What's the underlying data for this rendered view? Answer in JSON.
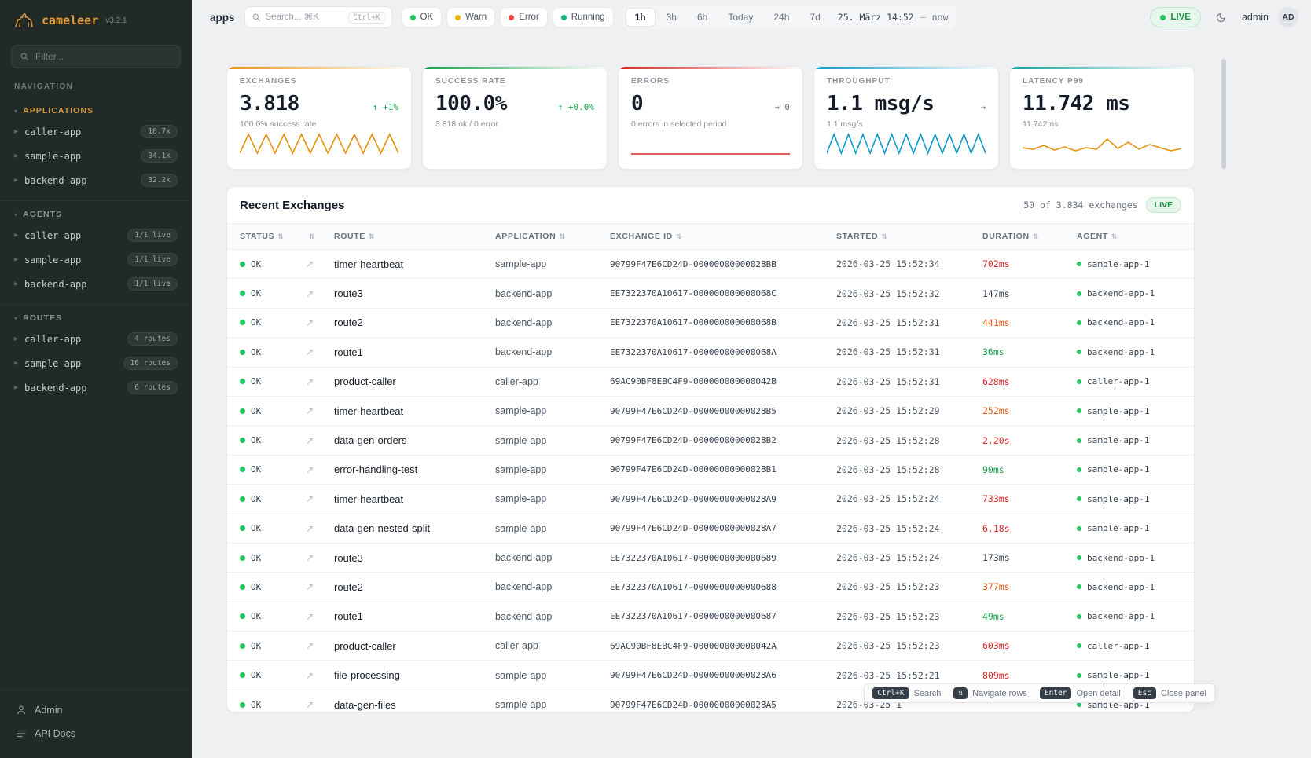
{
  "app": {
    "name": "cameleer",
    "version": "v3.2.1"
  },
  "sidebar": {
    "filter_placeholder": "Filter...",
    "nav_label": "NAVIGATION",
    "sections": [
      {
        "title": "APPLICATIONS",
        "state": "active",
        "items": [
          {
            "label": "caller-app",
            "badge": "10.7k"
          },
          {
            "label": "sample-app",
            "badge": "84.1k"
          },
          {
            "label": "backend-app",
            "badge": "32.2k"
          }
        ]
      },
      {
        "title": "AGENTS",
        "state": "",
        "items": [
          {
            "label": "caller-app",
            "badge": "1/1 live"
          },
          {
            "label": "sample-app",
            "badge": "1/1 live"
          },
          {
            "label": "backend-app",
            "badge": "1/1 live"
          }
        ]
      },
      {
        "title": "ROUTES",
        "state": "",
        "items": [
          {
            "label": "caller-app",
            "badge": "4 routes"
          },
          {
            "label": "sample-app",
            "badge": "16 routes"
          },
          {
            "label": "backend-app",
            "badge": "6 routes"
          }
        ]
      }
    ],
    "footer": {
      "admin": "Admin",
      "api_docs": "API Docs"
    }
  },
  "topbar": {
    "breadcrumb": "apps",
    "search": {
      "placeholder": "Search... ⌘K",
      "shortcut": "Ctrl+K"
    },
    "status_filters": [
      {
        "label": "OK",
        "color": "#22c55e"
      },
      {
        "label": "Warn",
        "color": "#eab308"
      },
      {
        "label": "Error",
        "color": "#ef4444"
      },
      {
        "label": "Running",
        "color": "#10b981"
      }
    ],
    "ranges": [
      {
        "label": "1h",
        "state": "active"
      },
      {
        "label": "3h",
        "state": ""
      },
      {
        "label": "6h",
        "state": ""
      },
      {
        "label": "Today",
        "state": ""
      },
      {
        "label": "24h",
        "state": ""
      },
      {
        "label": "7d",
        "state": ""
      }
    ],
    "datetime": "25. März 14:52",
    "datetime_sep": "—",
    "datetime_end": "now",
    "live_label": "LIVE",
    "user": "admin",
    "avatar": "AD"
  },
  "kpis": [
    {
      "title": "EXCHANGES",
      "value": "3.818",
      "trend": "↑ +1%",
      "trend_state": "up",
      "subtitle": "100.0% success rate",
      "accent": "#e8920c",
      "spark": "wave9",
      "spark_color": "#e8920c"
    },
    {
      "title": "SUCCESS RATE",
      "value": "100.0%",
      "trend": "↑ +0.0%",
      "trend_state": "up",
      "subtitle": "3.818 ok / 0 error",
      "accent": "#16a34a",
      "spark": "none",
      "spark_color": "#16a34a"
    },
    {
      "title": "ERRORS",
      "value": "0",
      "trend": "→ 0",
      "trend_state": "neutral",
      "subtitle": "0 errors in selected period",
      "accent": "#dc2626",
      "spark": "flat",
      "spark_color": "#dc2626"
    },
    {
      "title": "THROUGHPUT",
      "value": "1.1 msg/s",
      "trend": "→",
      "trend_state": "neutral",
      "subtitle": "1.1 msg/s",
      "accent": "#0d9bc7",
      "spark": "wave11",
      "spark_color": "#0d9bc7"
    },
    {
      "title": "LATENCY P99",
      "value": "11.742 ms",
      "trend": "",
      "trend_state": "neutral",
      "subtitle": "11.742ms",
      "accent": "#10a39a",
      "spark": "noisy",
      "spark_color": "#e8920c"
    }
  ],
  "table": {
    "title": "Recent Exchanges",
    "summary": "50 of 3.834 exchanges",
    "live_label": "LIVE",
    "columns": [
      {
        "label": "STATUS"
      },
      {
        "label": ""
      },
      {
        "label": "ROUTE"
      },
      {
        "label": "APPLICATION"
      },
      {
        "label": "EXCHANGE ID"
      },
      {
        "label": "STARTED"
      },
      {
        "label": "DURATION"
      },
      {
        "label": "AGENT"
      }
    ],
    "rows": [
      {
        "status": "OK",
        "route": "timer-heartbeat",
        "app": "sample-app",
        "id": "90799F47E6CD24D-00000000000028BB",
        "started": "2026-03-25 15:52:34",
        "duration": "702ms",
        "level": "slow",
        "agent": "sample-app-1"
      },
      {
        "status": "OK",
        "route": "route3",
        "app": "backend-app",
        "id": "EE7322370A10617-000000000000068C",
        "started": "2026-03-25 15:52:32",
        "duration": "147ms",
        "level": "normal",
        "agent": "backend-app-1"
      },
      {
        "status": "OK",
        "route": "route2",
        "app": "backend-app",
        "id": "EE7322370A10617-000000000000068B",
        "started": "2026-03-25 15:52:31",
        "duration": "441ms",
        "level": "warn",
        "agent": "backend-app-1"
      },
      {
        "status": "OK",
        "route": "route1",
        "app": "backend-app",
        "id": "EE7322370A10617-000000000000068A",
        "started": "2026-03-25 15:52:31",
        "duration": "36ms",
        "level": "fast",
        "agent": "backend-app-1"
      },
      {
        "status": "OK",
        "route": "product-caller",
        "app": "caller-app",
        "id": "69AC90BF8EBC4F9-000000000000042B",
        "started": "2026-03-25 15:52:31",
        "duration": "628ms",
        "level": "slow",
        "agent": "caller-app-1"
      },
      {
        "status": "OK",
        "route": "timer-heartbeat",
        "app": "sample-app",
        "id": "90799F47E6CD24D-00000000000028B5",
        "started": "2026-03-25 15:52:29",
        "duration": "252ms",
        "level": "warn",
        "agent": "sample-app-1"
      },
      {
        "status": "OK",
        "route": "data-gen-orders",
        "app": "sample-app",
        "id": "90799F47E6CD24D-00000000000028B2",
        "started": "2026-03-25 15:52:28",
        "duration": "2.20s",
        "level": "slow",
        "agent": "sample-app-1"
      },
      {
        "status": "OK",
        "route": "error-handling-test",
        "app": "sample-app",
        "id": "90799F47E6CD24D-00000000000028B1",
        "started": "2026-03-25 15:52:28",
        "duration": "90ms",
        "level": "fast",
        "agent": "sample-app-1"
      },
      {
        "status": "OK",
        "route": "timer-heartbeat",
        "app": "sample-app",
        "id": "90799F47E6CD24D-00000000000028A9",
        "started": "2026-03-25 15:52:24",
        "duration": "733ms",
        "level": "slow",
        "agent": "sample-app-1"
      },
      {
        "status": "OK",
        "route": "data-gen-nested-split",
        "app": "sample-app",
        "id": "90799F47E6CD24D-00000000000028A7",
        "started": "2026-03-25 15:52:24",
        "duration": "6.18s",
        "level": "slow",
        "agent": "sample-app-1"
      },
      {
        "status": "OK",
        "route": "route3",
        "app": "backend-app",
        "id": "EE7322370A10617-0000000000000689",
        "started": "2026-03-25 15:52:24",
        "duration": "173ms",
        "level": "normal",
        "agent": "backend-app-1"
      },
      {
        "status": "OK",
        "route": "route2",
        "app": "backend-app",
        "id": "EE7322370A10617-0000000000000688",
        "started": "2026-03-25 15:52:23",
        "duration": "377ms",
        "level": "warn",
        "agent": "backend-app-1"
      },
      {
        "status": "OK",
        "route": "route1",
        "app": "backend-app",
        "id": "EE7322370A10617-0000000000000687",
        "started": "2026-03-25 15:52:23",
        "duration": "49ms",
        "level": "fast",
        "agent": "backend-app-1"
      },
      {
        "status": "OK",
        "route": "product-caller",
        "app": "caller-app",
        "id": "69AC90BF8EBC4F9-000000000000042A",
        "started": "2026-03-25 15:52:23",
        "duration": "603ms",
        "level": "slow",
        "agent": "caller-app-1"
      },
      {
        "status": "OK",
        "route": "file-processing",
        "app": "sample-app",
        "id": "90799F47E6CD24D-00000000000028A6",
        "started": "2026-03-25 15:52:21",
        "duration": "809ms",
        "level": "slow",
        "agent": "sample-app-1"
      },
      {
        "status": "OK",
        "route": "data-gen-files",
        "app": "sample-app",
        "id": "90799F47E6CD24D-00000000000028A5",
        "started": "2026-03-25 1",
        "duration": "",
        "level": "normal",
        "agent": "sample-app-1"
      }
    ]
  },
  "shortcuts": [
    {
      "key": "Ctrl+K",
      "label": "Search"
    },
    {
      "key": "⇅",
      "label": "Navigate rows"
    },
    {
      "key": "Enter",
      "label": "Open detail"
    },
    {
      "key": "Esc",
      "label": "Close panel"
    }
  ]
}
